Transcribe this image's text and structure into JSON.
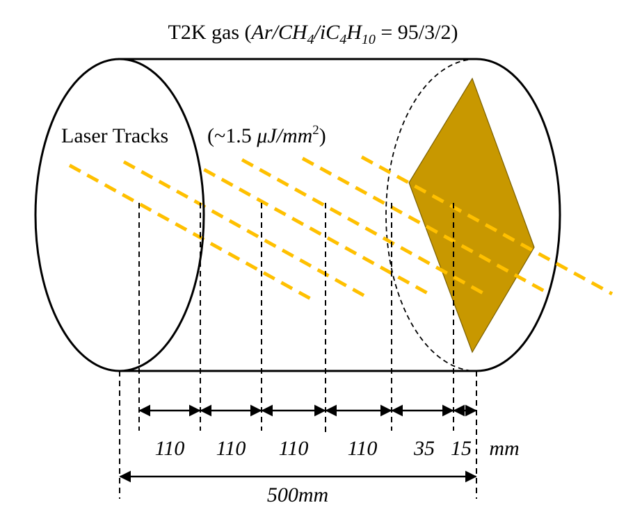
{
  "title": {
    "prefix": "T2K gas (",
    "formula": "Ar/CH",
    "sub_4": "4",
    "mid": "/iC",
    "sub_4b": "4",
    "h": "H",
    "sub_10": "10",
    "eq": " = 95/3/2)"
  },
  "laser": {
    "label": "Laser Tracks",
    "energy_open": "(~1.5 ",
    "energy_unit": "μJ/mm",
    "energy_sup": "2",
    "energy_close": ")"
  },
  "spacings": {
    "values": [
      "110",
      "110",
      "110",
      "110",
      "35",
      "15"
    ],
    "unit": "mm"
  },
  "total_length": "500mm",
  "colors": {
    "laser": "#FFC000",
    "readout_plane": "#C89800",
    "outline": "#000000"
  }
}
